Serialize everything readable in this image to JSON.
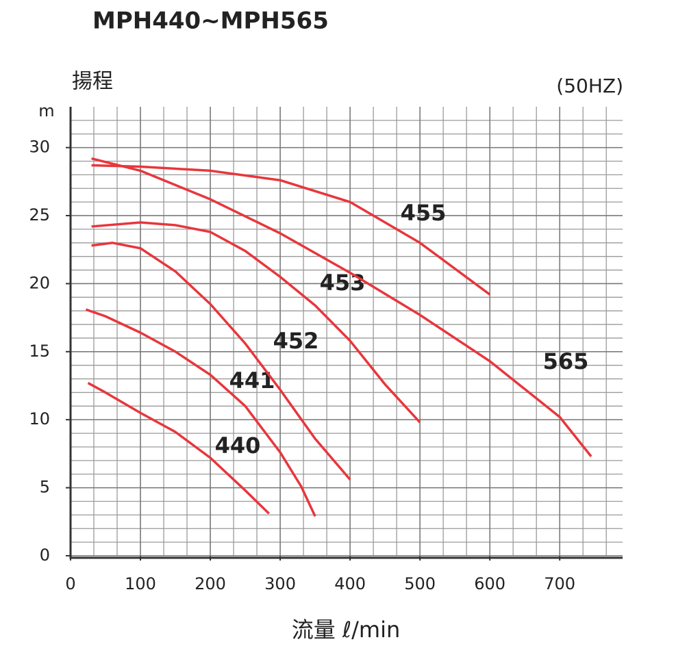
{
  "chart_data": {
    "type": "line",
    "title": "MPH440~MPH565",
    "y_label": "揚程",
    "y_unit": "m",
    "x_label": "流量 ℓ/min",
    "note": "(50HZ)",
    "xlim": [
      0,
      790
    ],
    "xticks": [
      0,
      100,
      200,
      300,
      400,
      500,
      600,
      700
    ],
    "ylim": [
      0,
      33
    ],
    "yticks": [
      0,
      5,
      10,
      15,
      20,
      25,
      30
    ],
    "grid": true,
    "grid_subdivisions": {
      "x": 3,
      "y": 5
    },
    "series": [
      {
        "name": "440",
        "color": "#e8363c",
        "x": [
          25,
          50,
          100,
          150,
          200,
          250,
          284
        ],
        "values": [
          12.7,
          12.0,
          10.5,
          9.1,
          7.2,
          4.8,
          3.1
        ]
      },
      {
        "name": "441",
        "color": "#e8363c",
        "x": [
          22,
          50,
          100,
          150,
          200,
          250,
          300,
          330,
          350
        ],
        "values": [
          18.1,
          17.6,
          16.4,
          15.0,
          13.3,
          11.0,
          7.6,
          5.1,
          2.9
        ]
      },
      {
        "name": "452",
        "color": "#e8363c",
        "x": [
          30,
          60,
          100,
          150,
          200,
          250,
          300,
          350,
          400
        ],
        "values": [
          22.8,
          23.0,
          22.6,
          20.9,
          18.5,
          15.6,
          12.2,
          8.6,
          5.6
        ]
      },
      {
        "name": "453",
        "color": "#e8363c",
        "x": [
          30,
          100,
          150,
          200,
          250,
          300,
          350,
          400,
          450,
          500
        ],
        "values": [
          24.2,
          24.5,
          24.3,
          23.8,
          22.4,
          20.5,
          18.4,
          15.8,
          12.6,
          9.8
        ]
      },
      {
        "name": "455",
        "color": "#e8363c",
        "x": [
          30,
          100,
          200,
          300,
          400,
          500,
          600
        ],
        "values": [
          28.7,
          28.6,
          28.3,
          27.6,
          26.0,
          23.0,
          19.2
        ]
      },
      {
        "name": "565",
        "color": "#e8363c",
        "x": [
          30,
          100,
          200,
          300,
          400,
          500,
          600,
          700,
          745
        ],
        "values": [
          29.2,
          28.3,
          26.2,
          23.7,
          20.8,
          17.7,
          14.3,
          10.2,
          7.3
        ]
      }
    ]
  }
}
